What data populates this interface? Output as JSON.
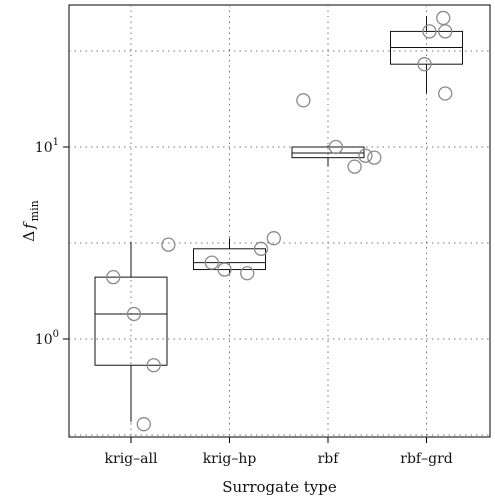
{
  "chart_data": {
    "type": "box",
    "xlabel": "Surrogate type",
    "ylabel": {
      "main": "Δ",
      "italic": "f",
      "subscript": "min"
    },
    "yscale": "log",
    "ylim": [
      0.3,
      55
    ],
    "grid": true,
    "categories": [
      "krig–all",
      "krig–hp",
      "rbf",
      "rbf–grd"
    ],
    "yticks": [
      {
        "value": 1,
        "base": "10",
        "exp": "0"
      },
      {
        "value": 10,
        "base": "10",
        "exp": "1"
      }
    ],
    "boxes": [
      {
        "whisker_low": 0.37,
        "q1": 0.73,
        "median": 1.35,
        "q3": 2.1,
        "whisker_high": 3.2
      },
      {
        "whisker_low": 2.2,
        "q1": 2.3,
        "median": 2.5,
        "q3": 2.95,
        "whisker_high": 3.35
      },
      {
        "whisker_low": 7.9,
        "q1": 8.8,
        "median": 9.3,
        "q3": 10.0,
        "whisker_high": 10.2
      },
      {
        "whisker_low": 19,
        "q1": 27,
        "median": 33,
        "q3": 40,
        "whisker_high": 48
      }
    ],
    "points": [
      [
        {
          "dx": -0.18,
          "y": 2.1
        },
        {
          "dx": 0.38,
          "y": 3.1
        },
        {
          "dx": 0.03,
          "y": 1.35
        },
        {
          "dx": 0.23,
          "y": 0.73
        },
        {
          "dx": 0.13,
          "y": 0.36
        }
      ],
      [
        {
          "dx": -0.18,
          "y": 2.5
        },
        {
          "dx": -0.05,
          "y": 2.3
        },
        {
          "dx": 0.18,
          "y": 2.2
        },
        {
          "dx": 0.32,
          "y": 2.95
        },
        {
          "dx": 0.45,
          "y": 3.35
        }
      ],
      [
        {
          "dx": -0.25,
          "y": 17.5
        },
        {
          "dx": 0.08,
          "y": 10.0
        },
        {
          "dx": 0.38,
          "y": 9.0
        },
        {
          "dx": 0.47,
          "y": 8.8
        },
        {
          "dx": 0.27,
          "y": 7.9
        }
      ],
      [
        {
          "dx": 0.17,
          "y": 47
        },
        {
          "dx": 0.03,
          "y": 40
        },
        {
          "dx": 0.19,
          "y": 40
        },
        {
          "dx": -0.02,
          "y": 27
        },
        {
          "dx": 0.19,
          "y": 19
        }
      ]
    ]
  }
}
